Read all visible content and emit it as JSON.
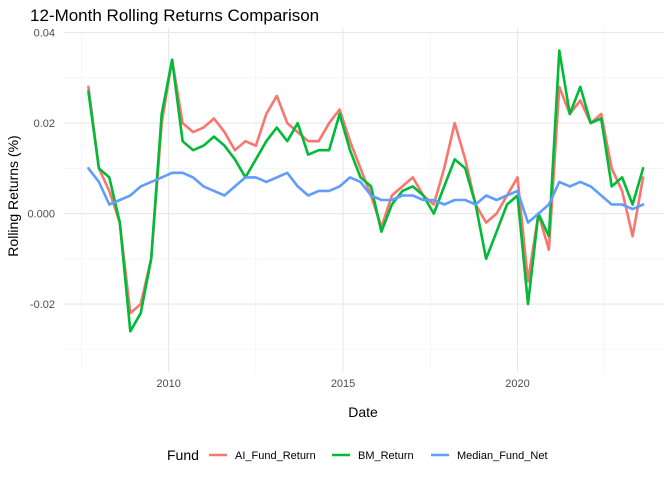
{
  "chart_data": {
    "type": "line",
    "title": "12-Month Rolling Returns Comparison",
    "xlabel": "Date",
    "ylabel": "Rolling Returns (%)",
    "x_type": "date",
    "xlim": [
      2007.0,
      2024.2
    ],
    "ylim": [
      -0.035,
      0.041
    ],
    "x_ticks": [
      {
        "value": 2010,
        "label": "2010"
      },
      {
        "value": 2015,
        "label": "2015"
      },
      {
        "value": 2020,
        "label": "2020"
      }
    ],
    "y_ticks": [
      {
        "value": -0.02,
        "label": "-0.02"
      },
      {
        "value": 0.0,
        "label": "0.000"
      },
      {
        "value": 0.02,
        "label": "0.02"
      },
      {
        "value": 0.04,
        "label": "0.04"
      }
    ],
    "grid": true,
    "legend": {
      "title": "Fund",
      "position": "bottom"
    },
    "x": [
      2007.7,
      2008.0,
      2008.3,
      2008.6,
      2008.9,
      2009.2,
      2009.5,
      2009.8,
      2010.1,
      2010.4,
      2010.7,
      2011.0,
      2011.3,
      2011.6,
      2011.9,
      2012.2,
      2012.5,
      2012.8,
      2013.1,
      2013.4,
      2013.7,
      2014.0,
      2014.3,
      2014.6,
      2014.9,
      2015.2,
      2015.5,
      2015.8,
      2016.1,
      2016.4,
      2016.7,
      2017.0,
      2017.3,
      2017.6,
      2017.9,
      2018.2,
      2018.5,
      2018.8,
      2019.1,
      2019.4,
      2019.7,
      2020.0,
      2020.3,
      2020.6,
      2020.9,
      2021.2,
      2021.5,
      2021.8,
      2022.1,
      2022.4,
      2022.7,
      2023.0,
      2023.3,
      2023.6
    ],
    "series": [
      {
        "name": "AI_Fund_Return",
        "color": "#F8766D",
        "values": [
          0.028,
          0.01,
          0.005,
          -0.002,
          -0.022,
          -0.02,
          -0.01,
          0.02,
          0.034,
          0.02,
          0.018,
          0.019,
          0.021,
          0.018,
          0.014,
          0.016,
          0.015,
          0.022,
          0.026,
          0.02,
          0.018,
          0.016,
          0.016,
          0.02,
          0.023,
          0.016,
          0.01,
          0.004,
          -0.003,
          0.004,
          0.006,
          0.008,
          0.004,
          0.002,
          0.01,
          0.02,
          0.012,
          0.002,
          -0.002,
          0.0,
          0.004,
          0.008,
          -0.015,
          0.0,
          -0.008,
          0.028,
          0.022,
          0.025,
          0.02,
          0.022,
          0.01,
          0.005,
          -0.005,
          0.008
        ]
      },
      {
        "name": "BM_Return",
        "color": "#00BA38",
        "values": [
          0.027,
          0.01,
          0.008,
          -0.002,
          -0.026,
          -0.022,
          -0.01,
          0.022,
          0.034,
          0.016,
          0.014,
          0.015,
          0.017,
          0.015,
          0.012,
          0.008,
          0.012,
          0.016,
          0.019,
          0.016,
          0.02,
          0.013,
          0.014,
          0.014,
          0.022,
          0.014,
          0.008,
          0.006,
          -0.004,
          0.002,
          0.005,
          0.006,
          0.004,
          0.0,
          0.006,
          0.012,
          0.01,
          0.002,
          -0.01,
          -0.004,
          0.002,
          0.004,
          -0.02,
          0.0,
          -0.005,
          0.036,
          0.022,
          0.028,
          0.02,
          0.021,
          0.006,
          0.008,
          0.002,
          0.01
        ]
      },
      {
        "name": "Median_Fund_Net",
        "color": "#619CFF",
        "values": [
          0.01,
          0.007,
          0.002,
          0.003,
          0.004,
          0.006,
          0.007,
          0.008,
          0.009,
          0.009,
          0.008,
          0.006,
          0.005,
          0.004,
          0.006,
          0.008,
          0.008,
          0.007,
          0.008,
          0.009,
          0.006,
          0.004,
          0.005,
          0.005,
          0.006,
          0.008,
          0.007,
          0.004,
          0.003,
          0.003,
          0.004,
          0.004,
          0.003,
          0.003,
          0.002,
          0.003,
          0.003,
          0.002,
          0.004,
          0.003,
          0.004,
          0.005,
          -0.002,
          0.0,
          0.002,
          0.007,
          0.006,
          0.007,
          0.006,
          0.004,
          0.002,
          0.002,
          0.001,
          0.002
        ]
      }
    ]
  }
}
